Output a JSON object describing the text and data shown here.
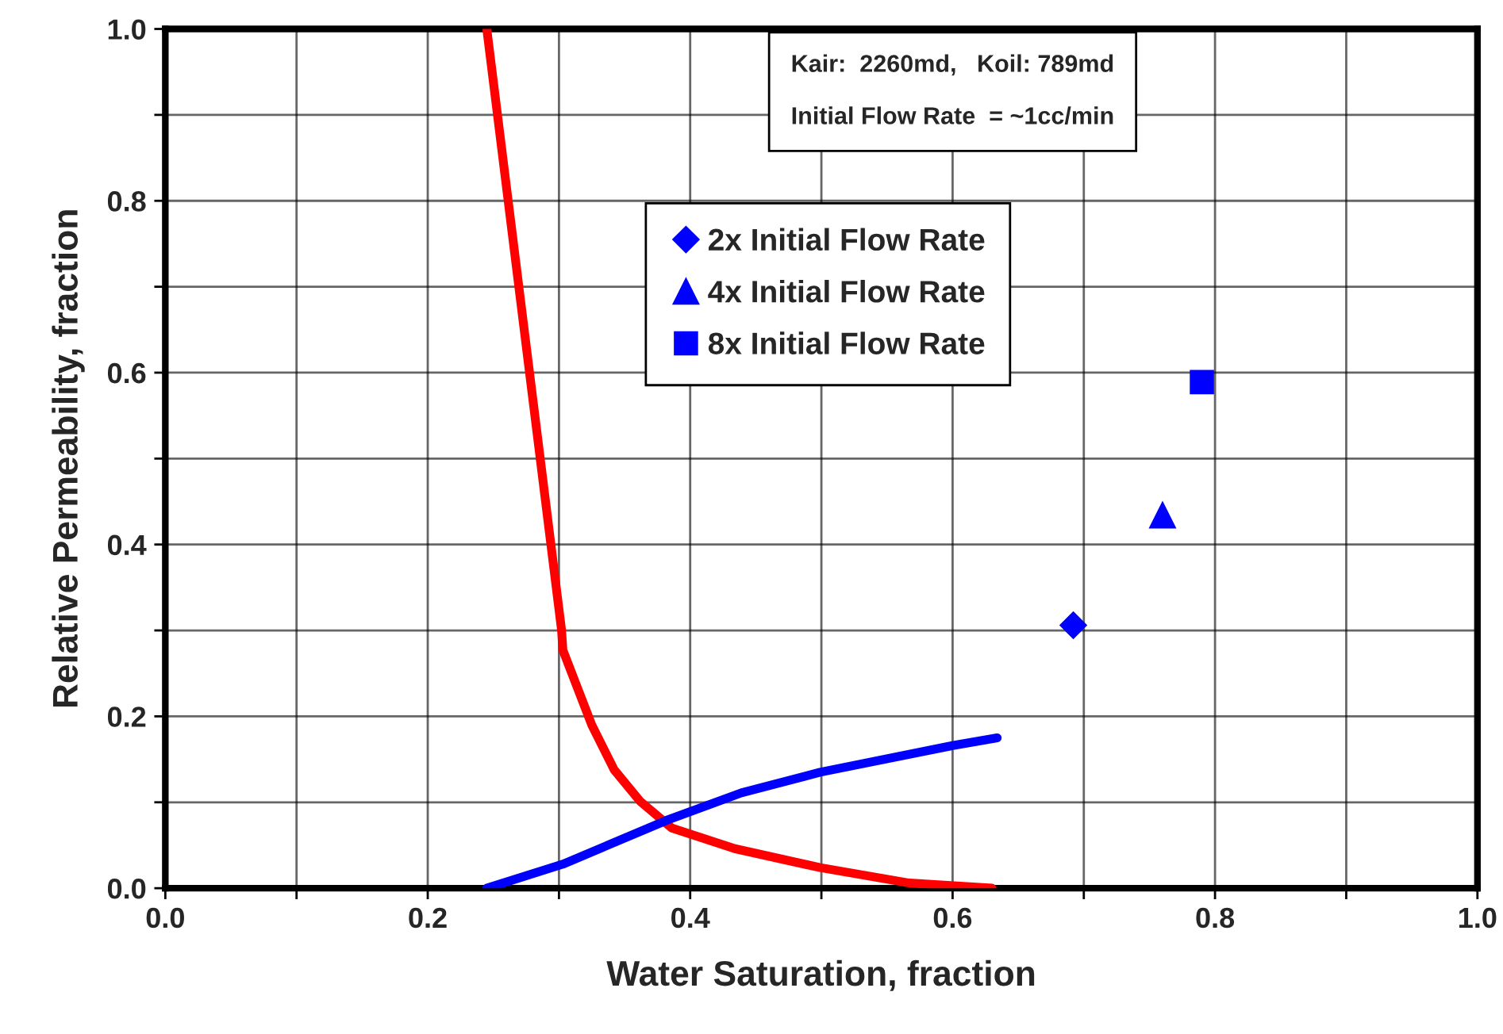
{
  "chart_data": {
    "type": "line",
    "xlabel": "Water Saturation, fraction",
    "ylabel": "Relative Permeability, fraction",
    "annotations": [
      "Kair:  2260md,   Koil: 789md",
      "Initial Flow Rate  = ~1cc/min"
    ],
    "series": [
      {
        "color": "#ff0000",
        "x": [
          0.245,
          0.302,
          0.303,
          0.325,
          0.342,
          0.362,
          0.386,
          0.434,
          0.499,
          0.567,
          0.63
        ],
        "values": [
          1.0,
          0.3,
          0.277,
          0.19,
          0.138,
          0.101,
          0.07,
          0.046,
          0.024,
          0.006,
          0.0
        ]
      },
      {
        "color": "#0000ff",
        "x": [
          0.245,
          0.303,
          0.382,
          0.439,
          0.499,
          0.6,
          0.634
        ],
        "values": [
          0.0,
          0.028,
          0.079,
          0.111,
          0.135,
          0.166,
          0.175
        ]
      },
      {
        "type": "scatter",
        "name": "2x Initial Flow Rate",
        "color": "#0000ff",
        "marker": "diamond",
        "x": [
          0.692
        ],
        "values": [
          0.306
        ]
      },
      {
        "type": "scatter",
        "name": "4x Initial Flow Rate",
        "color": "#0000ff",
        "marker": "triangle",
        "x": [
          0.76
        ],
        "values": [
          0.434
        ]
      },
      {
        "type": "scatter",
        "name": "8x Initial Flow Rate",
        "color": "#0000ff",
        "marker": "square",
        "x": [
          0.79
        ],
        "values": [
          0.589
        ]
      }
    ],
    "xlim": [
      0.0,
      1.0
    ],
    "ylim": [
      0.0,
      1.0
    ],
    "xticks": [
      {
        "value": 0.0,
        "label": "0.0"
      },
      {
        "value": 0.1,
        "label": null
      },
      {
        "value": 0.2,
        "label": "0.2"
      },
      {
        "value": 0.3,
        "label": null
      },
      {
        "value": 0.4,
        "label": "0.4"
      },
      {
        "value": 0.5,
        "label": null
      },
      {
        "value": 0.6,
        "label": "0.6"
      },
      {
        "value": 0.7,
        "label": null
      },
      {
        "value": 0.8,
        "label": "0.8"
      },
      {
        "value": 0.9,
        "label": null
      },
      {
        "value": 1.0,
        "label": "1.0"
      }
    ],
    "yticks": [
      {
        "value": 0.0,
        "label": "0.0"
      },
      {
        "value": 0.1,
        "label": null
      },
      {
        "value": 0.2,
        "label": "0.2"
      },
      {
        "value": 0.3,
        "label": null
      },
      {
        "value": 0.4,
        "label": "0.4"
      },
      {
        "value": 0.5,
        "label": null
      },
      {
        "value": 0.6,
        "label": "0.6"
      },
      {
        "value": 0.7,
        "label": null
      },
      {
        "value": 0.8,
        "label": "0.8"
      },
      {
        "value": 0.9,
        "label": null
      },
      {
        "value": 1.0,
        "label": "1.0"
      }
    ],
    "grid": true,
    "legend": "top"
  }
}
